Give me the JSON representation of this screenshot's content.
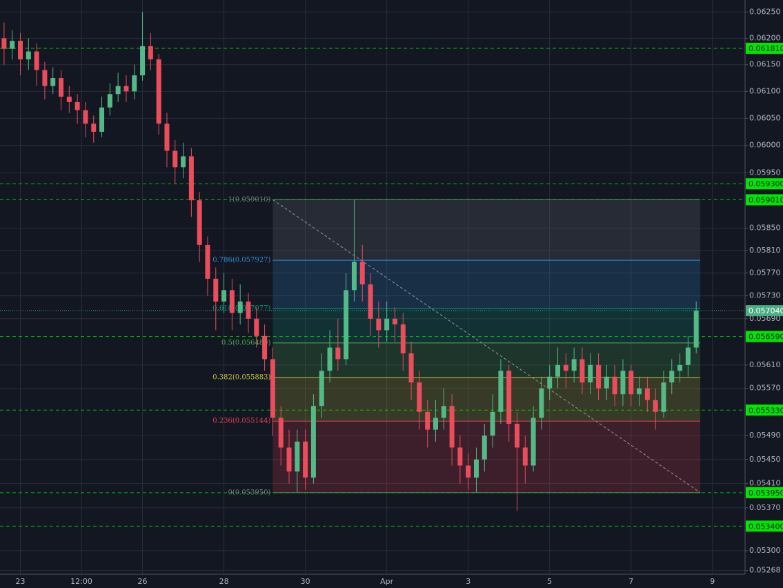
{
  "chart_data": {
    "type": "candlestick",
    "log_scale": true,
    "grid": true,
    "up_color": "#53b987",
    "down_color": "#eb4d5c",
    "x": [
      -2,
      -1,
      0,
      1,
      2,
      3,
      4,
      5,
      6,
      7,
      8,
      9,
      10,
      11,
      12,
      13,
      14,
      15,
      16,
      17,
      18,
      19,
      20,
      21,
      22,
      23,
      24,
      25,
      26,
      27,
      28,
      29,
      30,
      31,
      32,
      33,
      34,
      35,
      36,
      37,
      38,
      39,
      40,
      41,
      42,
      43,
      44,
      45,
      46,
      47,
      48,
      49,
      50,
      51,
      52,
      53,
      54,
      55,
      56,
      57,
      58,
      59,
      60,
      61,
      62,
      63,
      64,
      65,
      66,
      67,
      68,
      69,
      70,
      71,
      72,
      73,
      74,
      75,
      76,
      77,
      78,
      79,
      80,
      81,
      82,
      83
    ],
    "open": [
      0.062,
      0.0618,
      0.06195,
      0.0616,
      0.06175,
      0.0614,
      0.0611,
      0.06125,
      0.0609,
      0.0608,
      0.06065,
      0.0604,
      0.06025,
      0.0607,
      0.06095,
      0.0611,
      0.061,
      0.0613,
      0.06185,
      0.0616,
      0.0604,
      0.0599,
      0.0596,
      0.0598,
      0.059,
      0.0582,
      0.0576,
      0.0572,
      0.0574,
      0.057,
      0.0572,
      0.0569,
      0.0566,
      0.0562,
      0.0552,
      0.0547,
      0.0543,
      0.0548,
      0.0542,
      0.0554,
      0.056,
      0.0564,
      0.0562,
      0.0574,
      0.0579,
      0.0575,
      0.0569,
      0.0567,
      0.0569,
      0.0568,
      0.0563,
      0.0558,
      0.0553,
      0.055,
      0.0552,
      0.0554,
      0.0547,
      0.0544,
      0.0542,
      0.0545,
      0.0549,
      0.0553,
      0.056,
      0.0551,
      0.0547,
      0.0544,
      0.0552,
      0.0557,
      0.0559,
      0.0561,
      0.056,
      0.0562,
      0.0558,
      0.0561,
      0.0557,
      0.0559,
      0.0556,
      0.056,
      0.0556,
      0.0557,
      0.0555,
      0.0553,
      0.0558,
      0.056,
      0.0561,
      0.0564
    ],
    "high": [
      0.0623,
      0.06215,
      0.0621,
      0.062,
      0.0619,
      0.06155,
      0.06145,
      0.0614,
      0.0611,
      0.06095,
      0.0608,
      0.06055,
      0.0609,
      0.06115,
      0.06135,
      0.0613,
      0.0615,
      0.0625,
      0.0621,
      0.0617,
      0.0606,
      0.0601,
      0.06005,
      0.05995,
      0.05915,
      0.05835,
      0.0578,
      0.0577,
      0.0576,
      0.0575,
      0.05735,
      0.0571,
      0.0568,
      0.0564,
      0.0554,
      0.055,
      0.055,
      0.055,
      0.0556,
      0.0563,
      0.0567,
      0.0569,
      0.0577,
      0.05901,
      0.0582,
      0.0577,
      0.0572,
      0.0572,
      0.0571,
      0.057,
      0.0565,
      0.056,
      0.0555,
      0.0555,
      0.0557,
      0.0556,
      0.0549,
      0.0546,
      0.0547,
      0.0551,
      0.0556,
      0.0562,
      0.0561,
      0.0553,
      0.0549,
      0.0554,
      0.0559,
      0.0561,
      0.0564,
      0.0563,
      0.0564,
      0.0564,
      0.0563,
      0.0563,
      0.0561,
      0.0561,
      0.0562,
      0.0561,
      0.0559,
      0.0559,
      0.0557,
      0.056,
      0.0562,
      0.0563,
      0.0566,
      0.0572
    ],
    "low": [
      0.0615,
      0.0616,
      0.0613,
      0.0614,
      0.0611,
      0.06085,
      0.06095,
      0.06065,
      0.0606,
      0.0604,
      0.06015,
      0.06005,
      0.06015,
      0.06055,
      0.0608,
      0.0608,
      0.06085,
      0.0612,
      0.0614,
      0.0602,
      0.0596,
      0.0593,
      0.0594,
      0.0587,
      0.0579,
      0.0573,
      0.0567,
      0.057,
      0.0567,
      0.0568,
      0.05665,
      0.0564,
      0.056,
      0.0549,
      0.0544,
      0.0541,
      0.05395,
      0.054,
      0.0541,
      0.0552,
      0.0558,
      0.056,
      0.0561,
      0.0572,
      0.0572,
      0.0566,
      0.0564,
      0.0565,
      0.0565,
      0.056,
      0.0555,
      0.055,
      0.0547,
      0.0548,
      0.055,
      0.0544,
      0.0541,
      0.054,
      0.05395,
      0.0543,
      0.0547,
      0.0551,
      0.0548,
      0.05365,
      0.0541,
      0.0543,
      0.055,
      0.0555,
      0.0557,
      0.0557,
      0.0558,
      0.0556,
      0.0556,
      0.0555,
      0.0555,
      0.0554,
      0.0554,
      0.0554,
      0.0554,
      0.0553,
      0.055,
      0.0552,
      0.0556,
      0.0558,
      0.0559,
      0.0563
    ],
    "close": [
      0.0618,
      0.06195,
      0.0616,
      0.06175,
      0.0614,
      0.0611,
      0.06125,
      0.0609,
      0.0608,
      0.06065,
      0.0604,
      0.06025,
      0.0607,
      0.06095,
      0.0611,
      0.061,
      0.0613,
      0.06185,
      0.0616,
      0.0604,
      0.0599,
      0.0596,
      0.0598,
      0.059,
      0.0582,
      0.0576,
      0.0572,
      0.0574,
      0.057,
      0.0572,
      0.0569,
      0.0566,
      0.0562,
      0.0552,
      0.0547,
      0.0543,
      0.0548,
      0.0542,
      0.0554,
      0.056,
      0.0564,
      0.0562,
      0.0574,
      0.0579,
      0.0575,
      0.0569,
      0.0567,
      0.0569,
      0.0568,
      0.0563,
      0.0558,
      0.0553,
      0.055,
      0.0552,
      0.0554,
      0.0547,
      0.0544,
      0.0542,
      0.0545,
      0.0549,
      0.0553,
      0.056,
      0.0551,
      0.0547,
      0.0544,
      0.0552,
      0.0557,
      0.0559,
      0.0561,
      0.056,
      0.0562,
      0.0558,
      0.0561,
      0.0557,
      0.0559,
      0.0556,
      0.056,
      0.0556,
      0.0557,
      0.0555,
      0.0553,
      0.0558,
      0.056,
      0.0561,
      0.0564,
      0.05704
    ],
    "xlim": [
      -2.5,
      89
    ],
    "xticks": [
      {
        "value": 0,
        "label": "23"
      },
      {
        "value": 7.5,
        "label": "12:00"
      },
      {
        "value": 15,
        "label": "26"
      },
      {
        "value": 25,
        "label": "28"
      },
      {
        "value": 35,
        "label": "30"
      },
      {
        "value": 45,
        "label": "Apr"
      },
      {
        "value": 55,
        "label": "3"
      },
      {
        "value": 65,
        "label": "5"
      },
      {
        "value": 75,
        "label": "7"
      },
      {
        "value": 85,
        "label": "9"
      }
    ],
    "ylim": [
      0.05262,
      0.06273
    ],
    "yticks": [
      {
        "value": 0.0625,
        "label": "0.06250"
      },
      {
        "value": 0.062,
        "label": "0.06200"
      },
      {
        "value": 0.0615,
        "label": "0.06150"
      },
      {
        "value": 0.061,
        "label": "0.06100"
      },
      {
        "value": 0.0605,
        "label": "0.06050"
      },
      {
        "value": 0.06,
        "label": "0.06000"
      },
      {
        "value": 0.0595,
        "label": "0.05950"
      },
      {
        "value": 0.0585,
        "label": "0.05850"
      },
      {
        "value": 0.0581,
        "label": "0.05810"
      },
      {
        "value": 0.0577,
        "label": "0.05770"
      },
      {
        "value": 0.0573,
        "label": "0.05730"
      },
      {
        "value": 0.0569,
        "label": "0.05690"
      },
      {
        "value": 0.0561,
        "label": "0.05610"
      },
      {
        "value": 0.0557,
        "label": "0.05570"
      },
      {
        "value": 0.0549,
        "label": "0.05490"
      },
      {
        "value": 0.0545,
        "label": "0.05450"
      },
      {
        "value": 0.0541,
        "label": "0.05410"
      },
      {
        "value": 0.0537,
        "label": "0.05370"
      },
      {
        "value": 0.053,
        "label": "0.05300"
      },
      {
        "value": 0.05268,
        "label": "0.05268"
      }
    ],
    "levels": {
      "color": "#00e600",
      "values": [
        {
          "value": 0.06181,
          "label": "0.061810"
        },
        {
          "value": 0.0593,
          "label": "0.059300"
        },
        {
          "value": 0.05901,
          "label": "0.059010"
        },
        {
          "value": 0.05659,
          "label": "0.056590"
        },
        {
          "value": 0.05533,
          "label": "0.055330"
        },
        {
          "value": 0.05395,
          "label": "0.053950"
        },
        {
          "value": 0.0534,
          "label": "0.053400"
        }
      ]
    },
    "last_price": {
      "value": 0.05704,
      "label": "0.057040",
      "color": "#4caf83"
    },
    "fib": {
      "x": [
        31,
        83.5
      ],
      "levels": [
        {
          "price": 0.05901,
          "label": "1(0.059010)",
          "color": "#787b86"
        },
        {
          "price": 0.057927,
          "label": "0.786(0.057927)",
          "color": "#2f8fd8"
        },
        {
          "price": 0.057077,
          "label": "0.618(0.057077)",
          "color": "#089981"
        },
        {
          "price": 0.05648,
          "label": "0.5(0.056480)",
          "color": "#4caf50"
        },
        {
          "price": 0.055883,
          "label": "0.382(0.055883)",
          "color": "#c8c83a"
        },
        {
          "price": 0.055144,
          "label": "0.236(0.055144)",
          "color": "#e8404f"
        },
        {
          "price": 0.05395,
          "label": "0(0.053950)",
          "color": "#787b86"
        }
      ]
    }
  }
}
